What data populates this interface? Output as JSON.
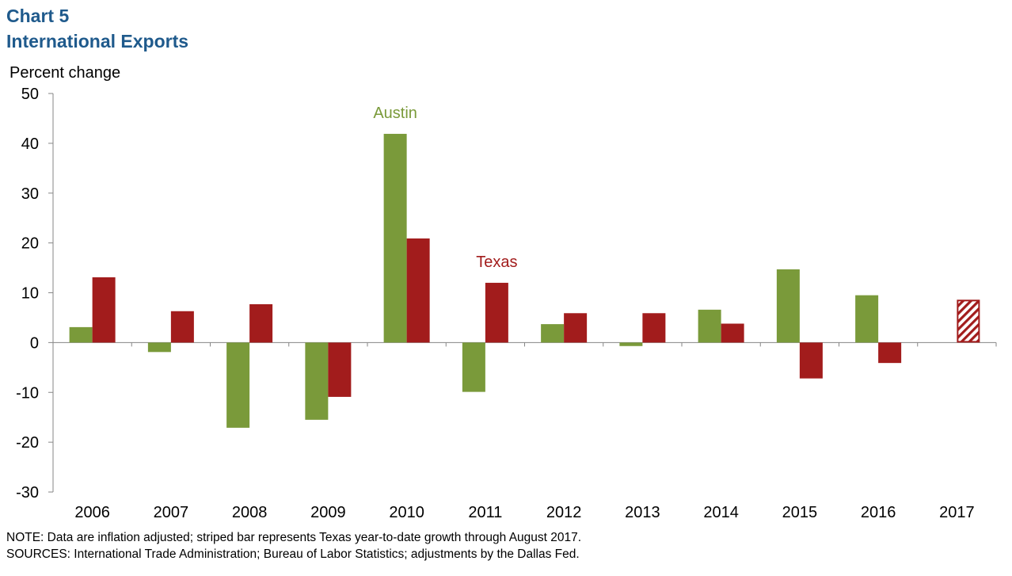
{
  "header": {
    "chart_number": "Chart 5",
    "title": "International Exports"
  },
  "footer": {
    "note": "NOTE: Data are inflation adjusted; striped bar represents Texas year-to-date growth through August 2017.",
    "sources": "SOURCES: International Trade Administration;  Bureau of Labor Statistics; adjustments by the Dallas Fed."
  },
  "chart_data": {
    "type": "bar",
    "title": "International Exports",
    "ylabel": "Percent change",
    "xlabel": "",
    "ylim": [
      -30,
      50
    ],
    "yticks": [
      -30,
      -20,
      -10,
      0,
      10,
      20,
      30,
      40,
      50
    ],
    "ytick_labels": [
      "-30",
      "-20",
      "-10",
      "0",
      "10",
      "20",
      "30",
      "40",
      "50"
    ],
    "categories": [
      "2006",
      "2007",
      "2008",
      "2009",
      "2010",
      "2011",
      "2012",
      "2013",
      "2014",
      "2015",
      "2016",
      "2017"
    ],
    "series": [
      {
        "name": "Austin",
        "color": "#7a9a3a",
        "values": [
          3.1,
          -1.9,
          -17.1,
          -15.5,
          41.9,
          -9.9,
          3.7,
          -0.7,
          6.6,
          14.7,
          9.5,
          null
        ]
      },
      {
        "name": "Texas",
        "color": "#a21c1c",
        "values": [
          13.1,
          6.3,
          7.7,
          -10.9,
          20.9,
          12.0,
          5.9,
          5.9,
          3.8,
          -7.2,
          -4.1,
          8.6
        ]
      }
    ],
    "striped": {
      "series": "Texas",
      "category": "2017"
    },
    "annotations": [
      {
        "text": "Austin",
        "series": "Austin",
        "category": "2010",
        "color": "#7a9a3a"
      },
      {
        "text": "Texas",
        "series": "Texas",
        "category": "2011",
        "color": "#a21c1c"
      }
    ],
    "grid": false,
    "legend": "none"
  }
}
